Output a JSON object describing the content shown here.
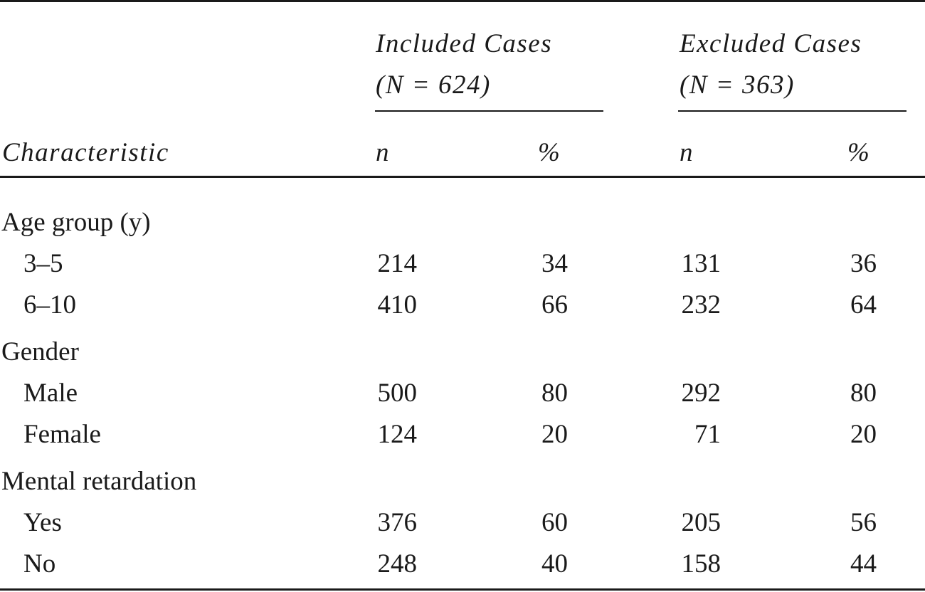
{
  "header": {
    "group1_line1": "Included Cases",
    "group1_line2": "(N = 624)",
    "group2_line1": "Excluded Cases",
    "group2_line2": "(N = 363)",
    "characteristic": "Characteristic",
    "n": "n",
    "pct": "%"
  },
  "rows": [
    {
      "label": "Age group (y)",
      "type": "category"
    },
    {
      "label": "3–5",
      "inc_n": "214",
      "inc_pct": "34",
      "exc_n": "131",
      "exc_pct": "36"
    },
    {
      "label": "6–10",
      "inc_n": "410",
      "inc_pct": "66",
      "exc_n": "232",
      "exc_pct": "64"
    },
    {
      "label": "Gender",
      "type": "category"
    },
    {
      "label": "Male",
      "inc_n": "500",
      "inc_pct": "80",
      "exc_n": "292",
      "exc_pct": "80"
    },
    {
      "label": "Female",
      "inc_n": "124",
      "inc_pct": "20",
      "exc_n": "71",
      "exc_pct": "20"
    },
    {
      "label": "Mental retardation",
      "type": "category"
    },
    {
      "label": "Yes",
      "inc_n": "376",
      "inc_pct": "60",
      "exc_n": "205",
      "exc_pct": "56"
    },
    {
      "label": "No",
      "inc_n": "248",
      "inc_pct": "40",
      "exc_n": "158",
      "exc_pct": "44"
    }
  ]
}
